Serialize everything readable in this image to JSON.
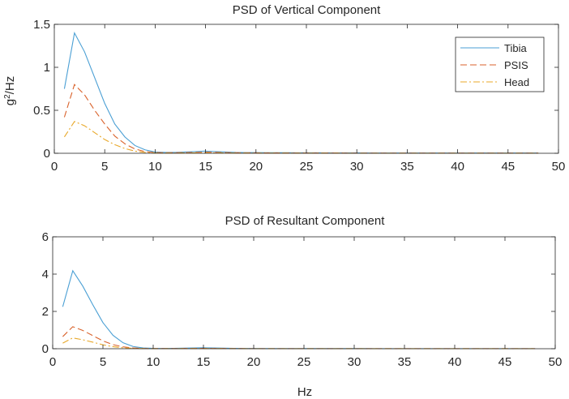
{
  "colors": {
    "tibia": "#4a9fd4",
    "psis": "#d9622b",
    "head": "#e8a82a",
    "axis": "#262626"
  },
  "chart_data": [
    {
      "type": "line",
      "title": "PSD of Vertical Component",
      "ylabel": "g²/Hz",
      "ylabel_base": "g",
      "ylabel_sup": "2",
      "ylabel_rest": "/Hz",
      "xlabel": "",
      "xlim": [
        0,
        50
      ],
      "ylim": [
        0,
        1.5
      ],
      "xticks": [
        "0",
        "5",
        "10",
        "15",
        "20",
        "25",
        "30",
        "35",
        "40",
        "45",
        "50"
      ],
      "yticks": [
        "0",
        "0.5",
        "1",
        "1.5"
      ],
      "legend_position": "top-right",
      "x": [
        1,
        2,
        3,
        4,
        5,
        6,
        7,
        8,
        9,
        10,
        11,
        12,
        13,
        14,
        15,
        16,
        17,
        18,
        19,
        20,
        21,
        22,
        23,
        24,
        25,
        26,
        27,
        28,
        29,
        30,
        31,
        32,
        33,
        34,
        35,
        36,
        37,
        38,
        39,
        40,
        41,
        42,
        43,
        44,
        45,
        46,
        47,
        48
      ],
      "series": [
        {
          "name": "Tibia",
          "style": "solid",
          "color_key": "tibia",
          "values": [
            0.75,
            1.4,
            1.18,
            0.88,
            0.58,
            0.34,
            0.19,
            0.09,
            0.04,
            0.015,
            0.01,
            0.01,
            0.015,
            0.02,
            0.025,
            0.02,
            0.015,
            0.01,
            0.008,
            0.008,
            0.007,
            0.006,
            0.006,
            0.005,
            0.005,
            0.005,
            0.004,
            0.004,
            0.004,
            0.004,
            0.003,
            0.003,
            0.003,
            0.003,
            0.003,
            0.003,
            0.003,
            0.003,
            0.003,
            0.003,
            0.003,
            0.003,
            0.003,
            0.003,
            0.003,
            0.003,
            0.003,
            0.003
          ]
        },
        {
          "name": "PSIS",
          "style": "dashed",
          "color_key": "psis",
          "values": [
            0.42,
            0.8,
            0.68,
            0.5,
            0.34,
            0.2,
            0.11,
            0.05,
            0.02,
            0.008,
            0.006,
            0.006,
            0.008,
            0.01,
            0.012,
            0.01,
            0.008,
            0.006,
            0.005,
            0.005,
            0.004,
            0.004,
            0.004,
            0.003,
            0.003,
            0.003,
            0.003,
            0.003,
            0.002,
            0.002,
            0.002,
            0.002,
            0.002,
            0.002,
            0.002,
            0.002,
            0.002,
            0.002,
            0.002,
            0.002,
            0.002,
            0.002,
            0.002,
            0.002,
            0.002,
            0.002,
            0.002,
            0.002
          ]
        },
        {
          "name": "Head",
          "style": "dashdot",
          "color_key": "head",
          "values": [
            0.19,
            0.37,
            0.32,
            0.24,
            0.16,
            0.1,
            0.055,
            0.025,
            0.01,
            0.004,
            0.003,
            0.003,
            0.004,
            0.005,
            0.006,
            0.005,
            0.004,
            0.003,
            0.003,
            0.002,
            0.002,
            0.002,
            0.002,
            0.002,
            0.002,
            0.002,
            0.002,
            0.002,
            0.001,
            0.001,
            0.001,
            0.001,
            0.001,
            0.001,
            0.001,
            0.001,
            0.001,
            0.001,
            0.001,
            0.001,
            0.001,
            0.001,
            0.001,
            0.001,
            0.001,
            0.001,
            0.001,
            0.001
          ]
        }
      ]
    },
    {
      "type": "line",
      "title": "PSD of Resultant Component",
      "ylabel": "",
      "xlabel": "Hz",
      "xlim": [
        0,
        50
      ],
      "ylim": [
        0,
        6
      ],
      "xticks": [
        "0",
        "5",
        "10",
        "15",
        "20",
        "25",
        "30",
        "35",
        "40",
        "45",
        "50"
      ],
      "yticks": [
        "0",
        "2",
        "4",
        "6"
      ],
      "x": [
        1,
        2,
        3,
        4,
        5,
        6,
        7,
        8,
        9,
        10,
        11,
        12,
        13,
        14,
        15,
        16,
        17,
        18,
        19,
        20,
        21,
        22,
        23,
        24,
        25,
        26,
        27,
        28,
        29,
        30,
        31,
        32,
        33,
        34,
        35,
        36,
        37,
        38,
        39,
        40,
        41,
        42,
        43,
        44,
        45,
        46,
        47,
        48
      ],
      "series": [
        {
          "name": "Tibia",
          "style": "solid",
          "color_key": "tibia",
          "values": [
            2.25,
            4.18,
            3.35,
            2.35,
            1.4,
            0.72,
            0.32,
            0.12,
            0.04,
            0.02,
            0.015,
            0.02,
            0.03,
            0.04,
            0.05,
            0.04,
            0.03,
            0.02,
            0.015,
            0.012,
            0.01,
            0.01,
            0.01,
            0.008,
            0.008,
            0.008,
            0.007,
            0.007,
            0.006,
            0.006,
            0.006,
            0.005,
            0.005,
            0.005,
            0.005,
            0.005,
            0.005,
            0.005,
            0.005,
            0.005,
            0.005,
            0.005,
            0.005,
            0.005,
            0.005,
            0.005,
            0.005,
            0.005
          ]
        },
        {
          "name": "PSIS",
          "style": "dashed",
          "color_key": "psis",
          "values": [
            0.65,
            1.18,
            0.98,
            0.7,
            0.42,
            0.22,
            0.1,
            0.04,
            0.015,
            0.008,
            0.006,
            0.008,
            0.012,
            0.015,
            0.02,
            0.015,
            0.012,
            0.008,
            0.006,
            0.005,
            0.004,
            0.004,
            0.004,
            0.003,
            0.003,
            0.003,
            0.003,
            0.003,
            0.002,
            0.002,
            0.002,
            0.002,
            0.002,
            0.002,
            0.002,
            0.002,
            0.002,
            0.002,
            0.002,
            0.002,
            0.002,
            0.002,
            0.002,
            0.002,
            0.002,
            0.002,
            0.002,
            0.002
          ]
        },
        {
          "name": "Head",
          "style": "dashdot",
          "color_key": "head",
          "values": [
            0.3,
            0.58,
            0.48,
            0.35,
            0.21,
            0.11,
            0.05,
            0.02,
            0.008,
            0.004,
            0.003,
            0.004,
            0.006,
            0.008,
            0.01,
            0.008,
            0.006,
            0.004,
            0.003,
            0.003,
            0.002,
            0.002,
            0.002,
            0.002,
            0.002,
            0.002,
            0.002,
            0.002,
            0.001,
            0.001,
            0.001,
            0.001,
            0.001,
            0.001,
            0.001,
            0.001,
            0.001,
            0.001,
            0.001,
            0.001,
            0.001,
            0.001,
            0.001,
            0.001,
            0.001,
            0.001,
            0.001,
            0.001
          ]
        }
      ]
    }
  ]
}
